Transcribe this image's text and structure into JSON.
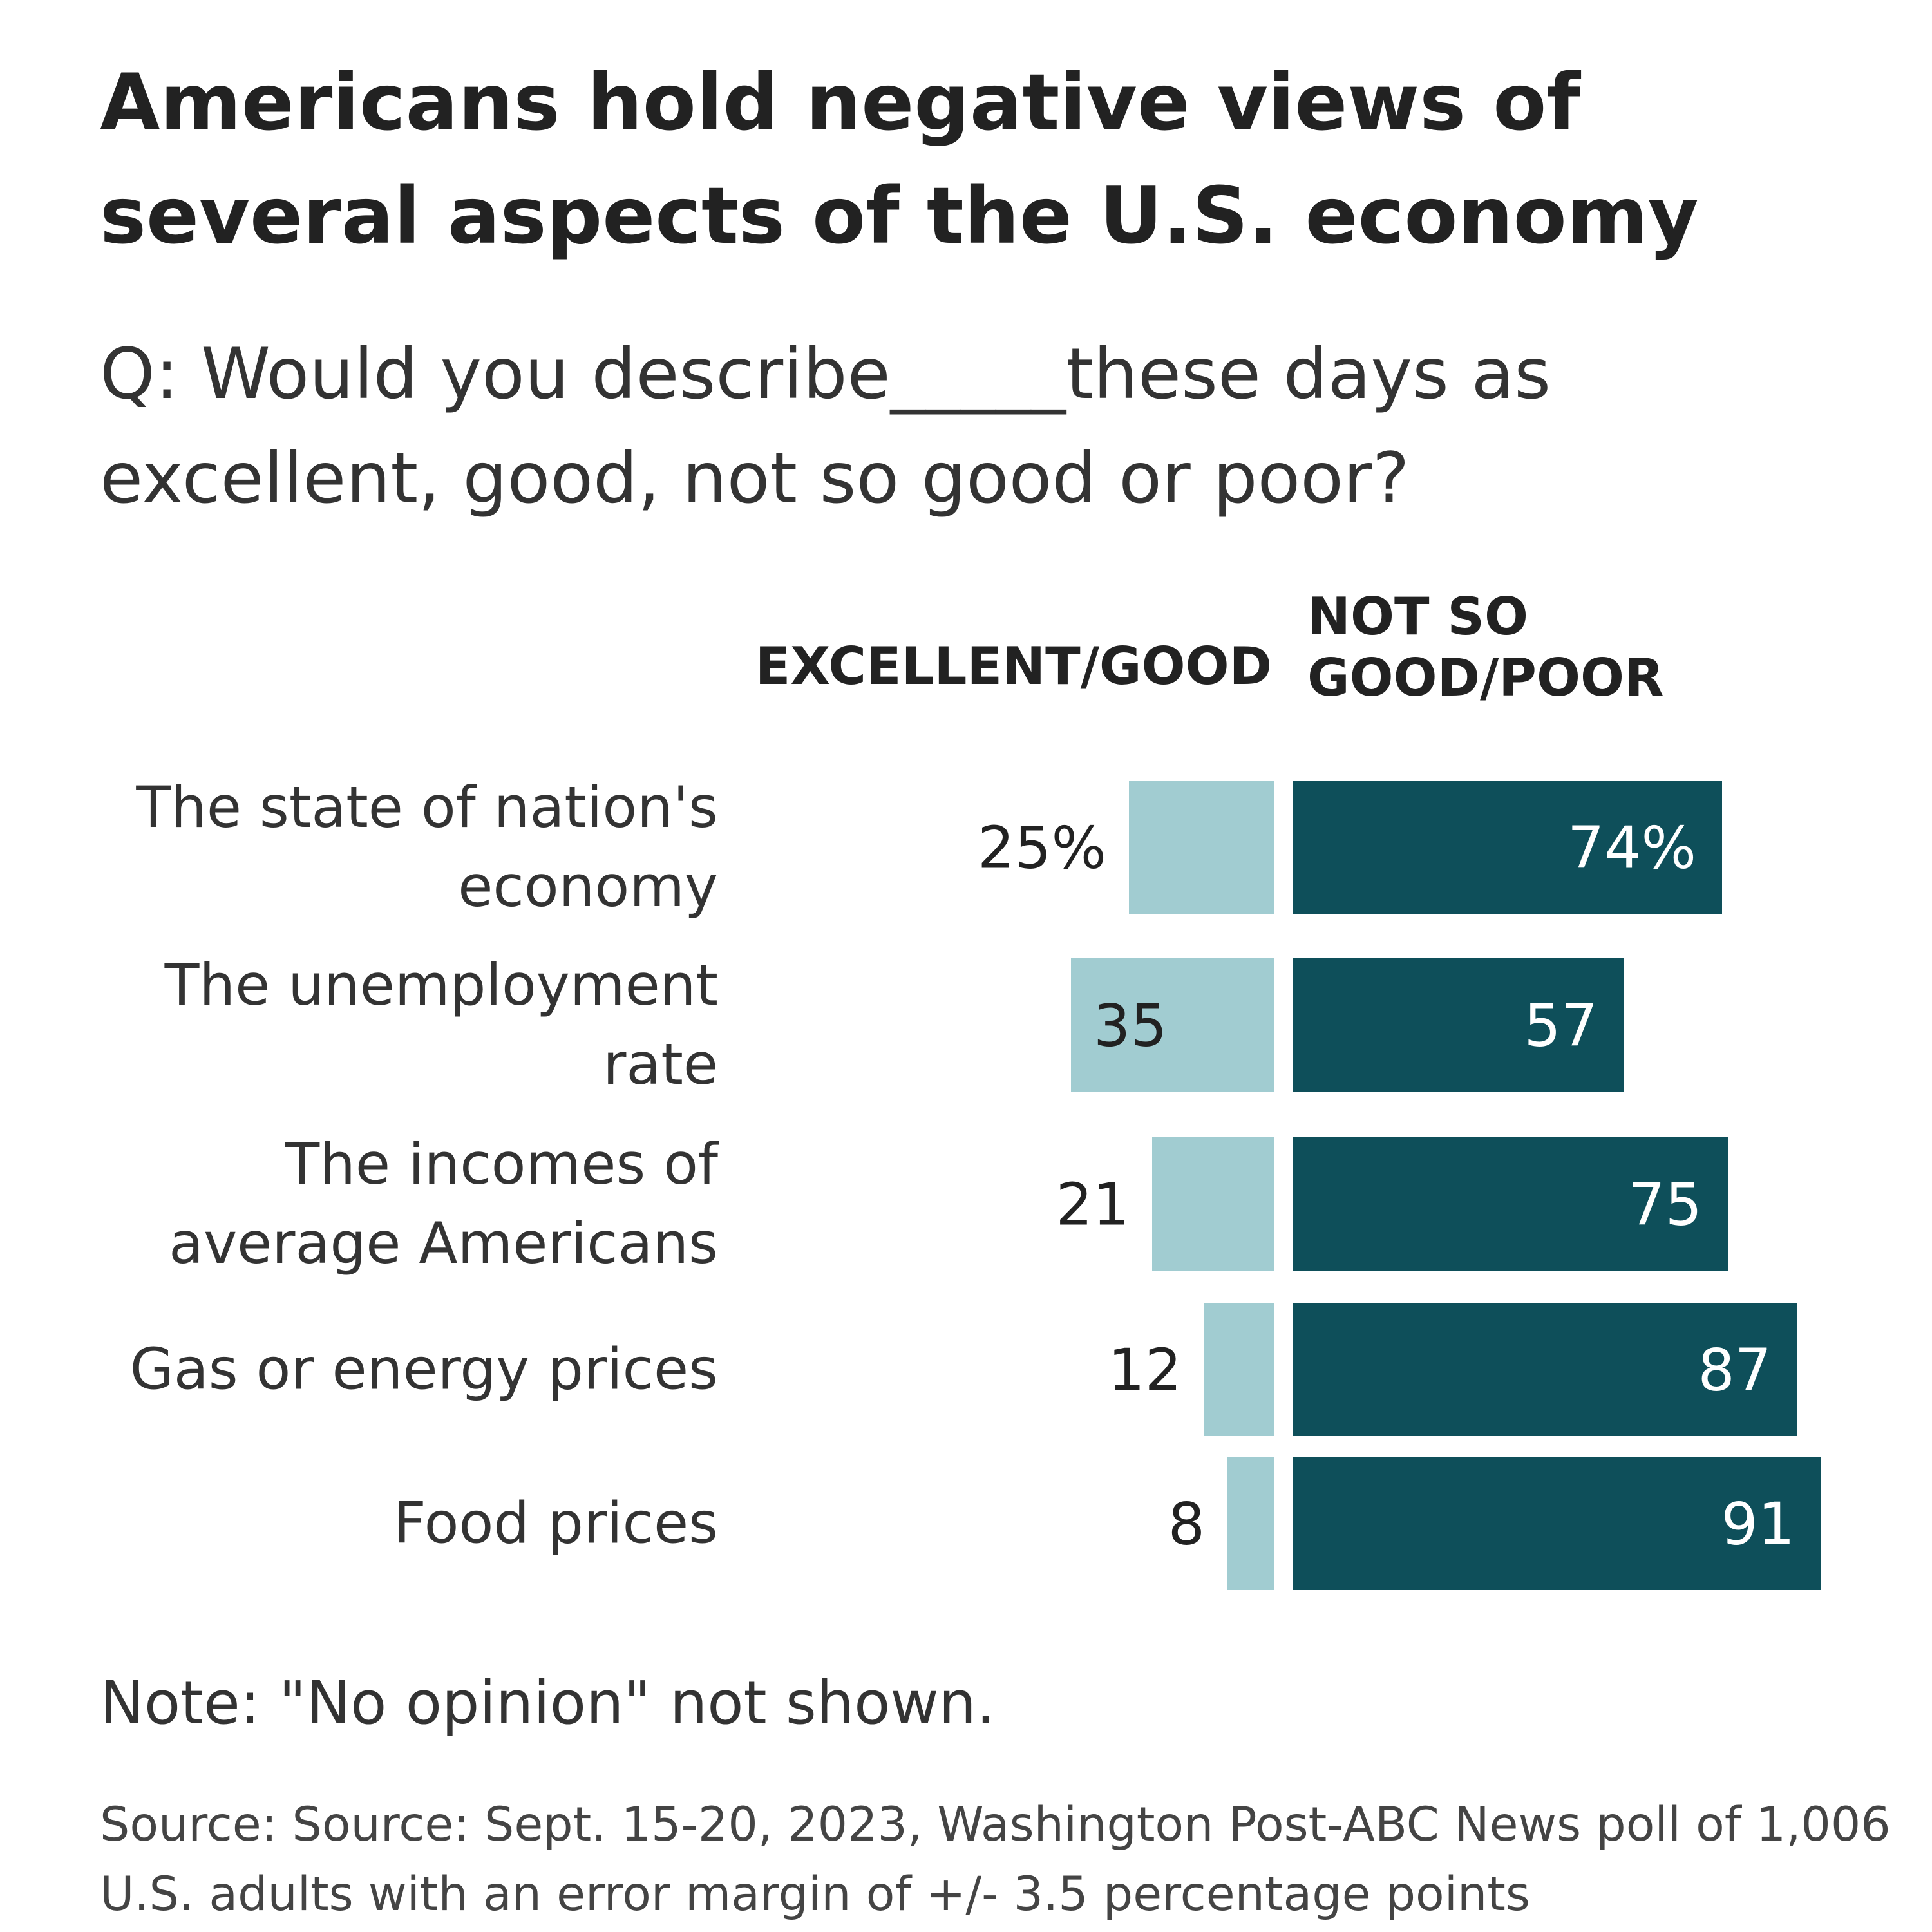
{
  "chart_data": {
    "type": "bar",
    "orientation": "horizontal-diverging",
    "title": "Americans hold negative views of several aspects of the U.S. economy",
    "subtitle": "Q: Would you describe_____these days as excellent, good, not so good or poor?",
    "columns": {
      "left": "EXCELLENT/GOOD",
      "right_lines": [
        "NOT SO",
        "GOOD/POOR"
      ]
    },
    "categories": [
      [
        "The state of nation's",
        "economy"
      ],
      [
        "The unemployment",
        "rate"
      ],
      [
        "The incomes of",
        "average Americans"
      ],
      [
        "Gas or energy prices"
      ],
      [
        "Food prices"
      ]
    ],
    "series": [
      {
        "name": "Excellent/Good",
        "values": [
          25,
          35,
          21,
          12,
          8
        ],
        "labels": [
          "25%",
          "35",
          "21",
          "12",
          "8"
        ],
        "color": "#a1ccd1"
      },
      {
        "name": "Not so good/Poor",
        "values": [
          74,
          57,
          75,
          87,
          91
        ],
        "labels": [
          "74%",
          "57",
          "75",
          "87",
          "91"
        ],
        "color": "#0e4f5a"
      }
    ],
    "unit": "%",
    "xlim": [
      0,
      100
    ],
    "note": "Note: \"No opinion\" not shown.",
    "source": "Source: Source: Sept. 15-20, 2023, Washington Post-ABC News poll of 1,006 U.S. adults with an error margin of +/- 3.5 percentage points"
  }
}
